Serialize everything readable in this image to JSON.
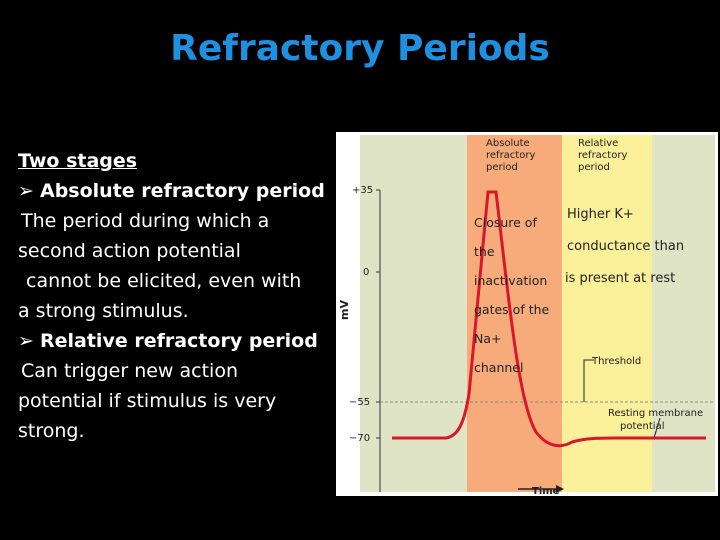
{
  "title": "Refractory Periods",
  "left": {
    "heading": "Two stages",
    "bullet1": "Absolute refractory period",
    "text1": [
      "The period during which a",
      "second action potential",
      "cannot be elicited, even with",
      "a strong stimulus."
    ],
    "bullet2": "Relative refractory period",
    "text2": [
      "Can trigger new action",
      "potential if stimulus is very",
      "strong."
    ]
  },
  "diagram": {
    "zone_labels": {
      "absolute": [
        "Absolute",
        "refractory",
        "period"
      ],
      "relative": [
        "Relative",
        "refractory",
        "period"
      ]
    },
    "y_axis_label": "mV",
    "ticks": [
      "+35",
      "0",
      "−55",
      "−70"
    ],
    "x_axis_label": "Time",
    "threshold_label": "Threshold",
    "resting_label": [
      "Resting membrane",
      "potential"
    ],
    "na_annotation": [
      "Closure of",
      "the",
      "inactivation",
      "gates of the",
      "Na+",
      "channel"
    ],
    "k_annotation": [
      "Higher K+",
      "conductance than",
      "is present at rest"
    ],
    "colors": {
      "title": "#1f8fe0",
      "absolute_zone": "#f8ab7a",
      "relative_zone": "#faf09a",
      "background_zone": "#dfe4c6",
      "trace": "#d8182a"
    }
  }
}
